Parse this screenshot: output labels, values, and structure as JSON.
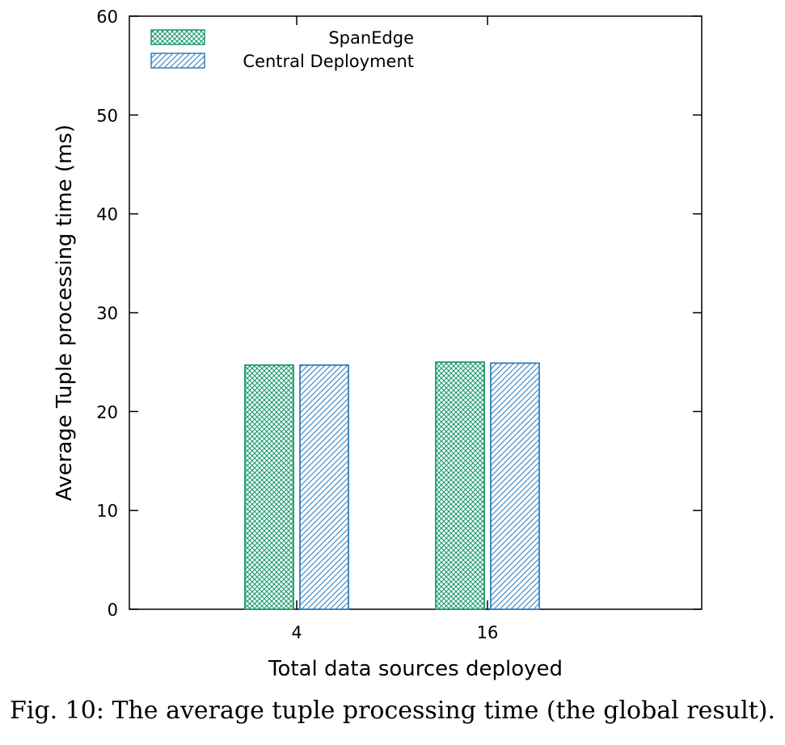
{
  "chart_data": {
    "type": "bar",
    "categories": [
      "4",
      "16"
    ],
    "series": [
      {
        "name": "SpanEdge",
        "values": [
          24.7,
          25.0
        ],
        "color": "#1a9a6c",
        "pattern": "crosshatch"
      },
      {
        "name": "Central Deployment",
        "values": [
          24.7,
          24.9
        ],
        "color": "#2f7fc1",
        "pattern": "diagonal"
      }
    ],
    "xlabel": "Total data sources deployed",
    "ylabel": "Average Tuple processing time (ms)",
    "ylim": [
      0,
      60
    ],
    "yticks": [
      "0",
      "10",
      "20",
      "30",
      "40",
      "50",
      "60"
    ],
    "legend_position": "top-left",
    "grid": false
  },
  "caption": "Fig. 10: The average tuple processing time (the global result)."
}
